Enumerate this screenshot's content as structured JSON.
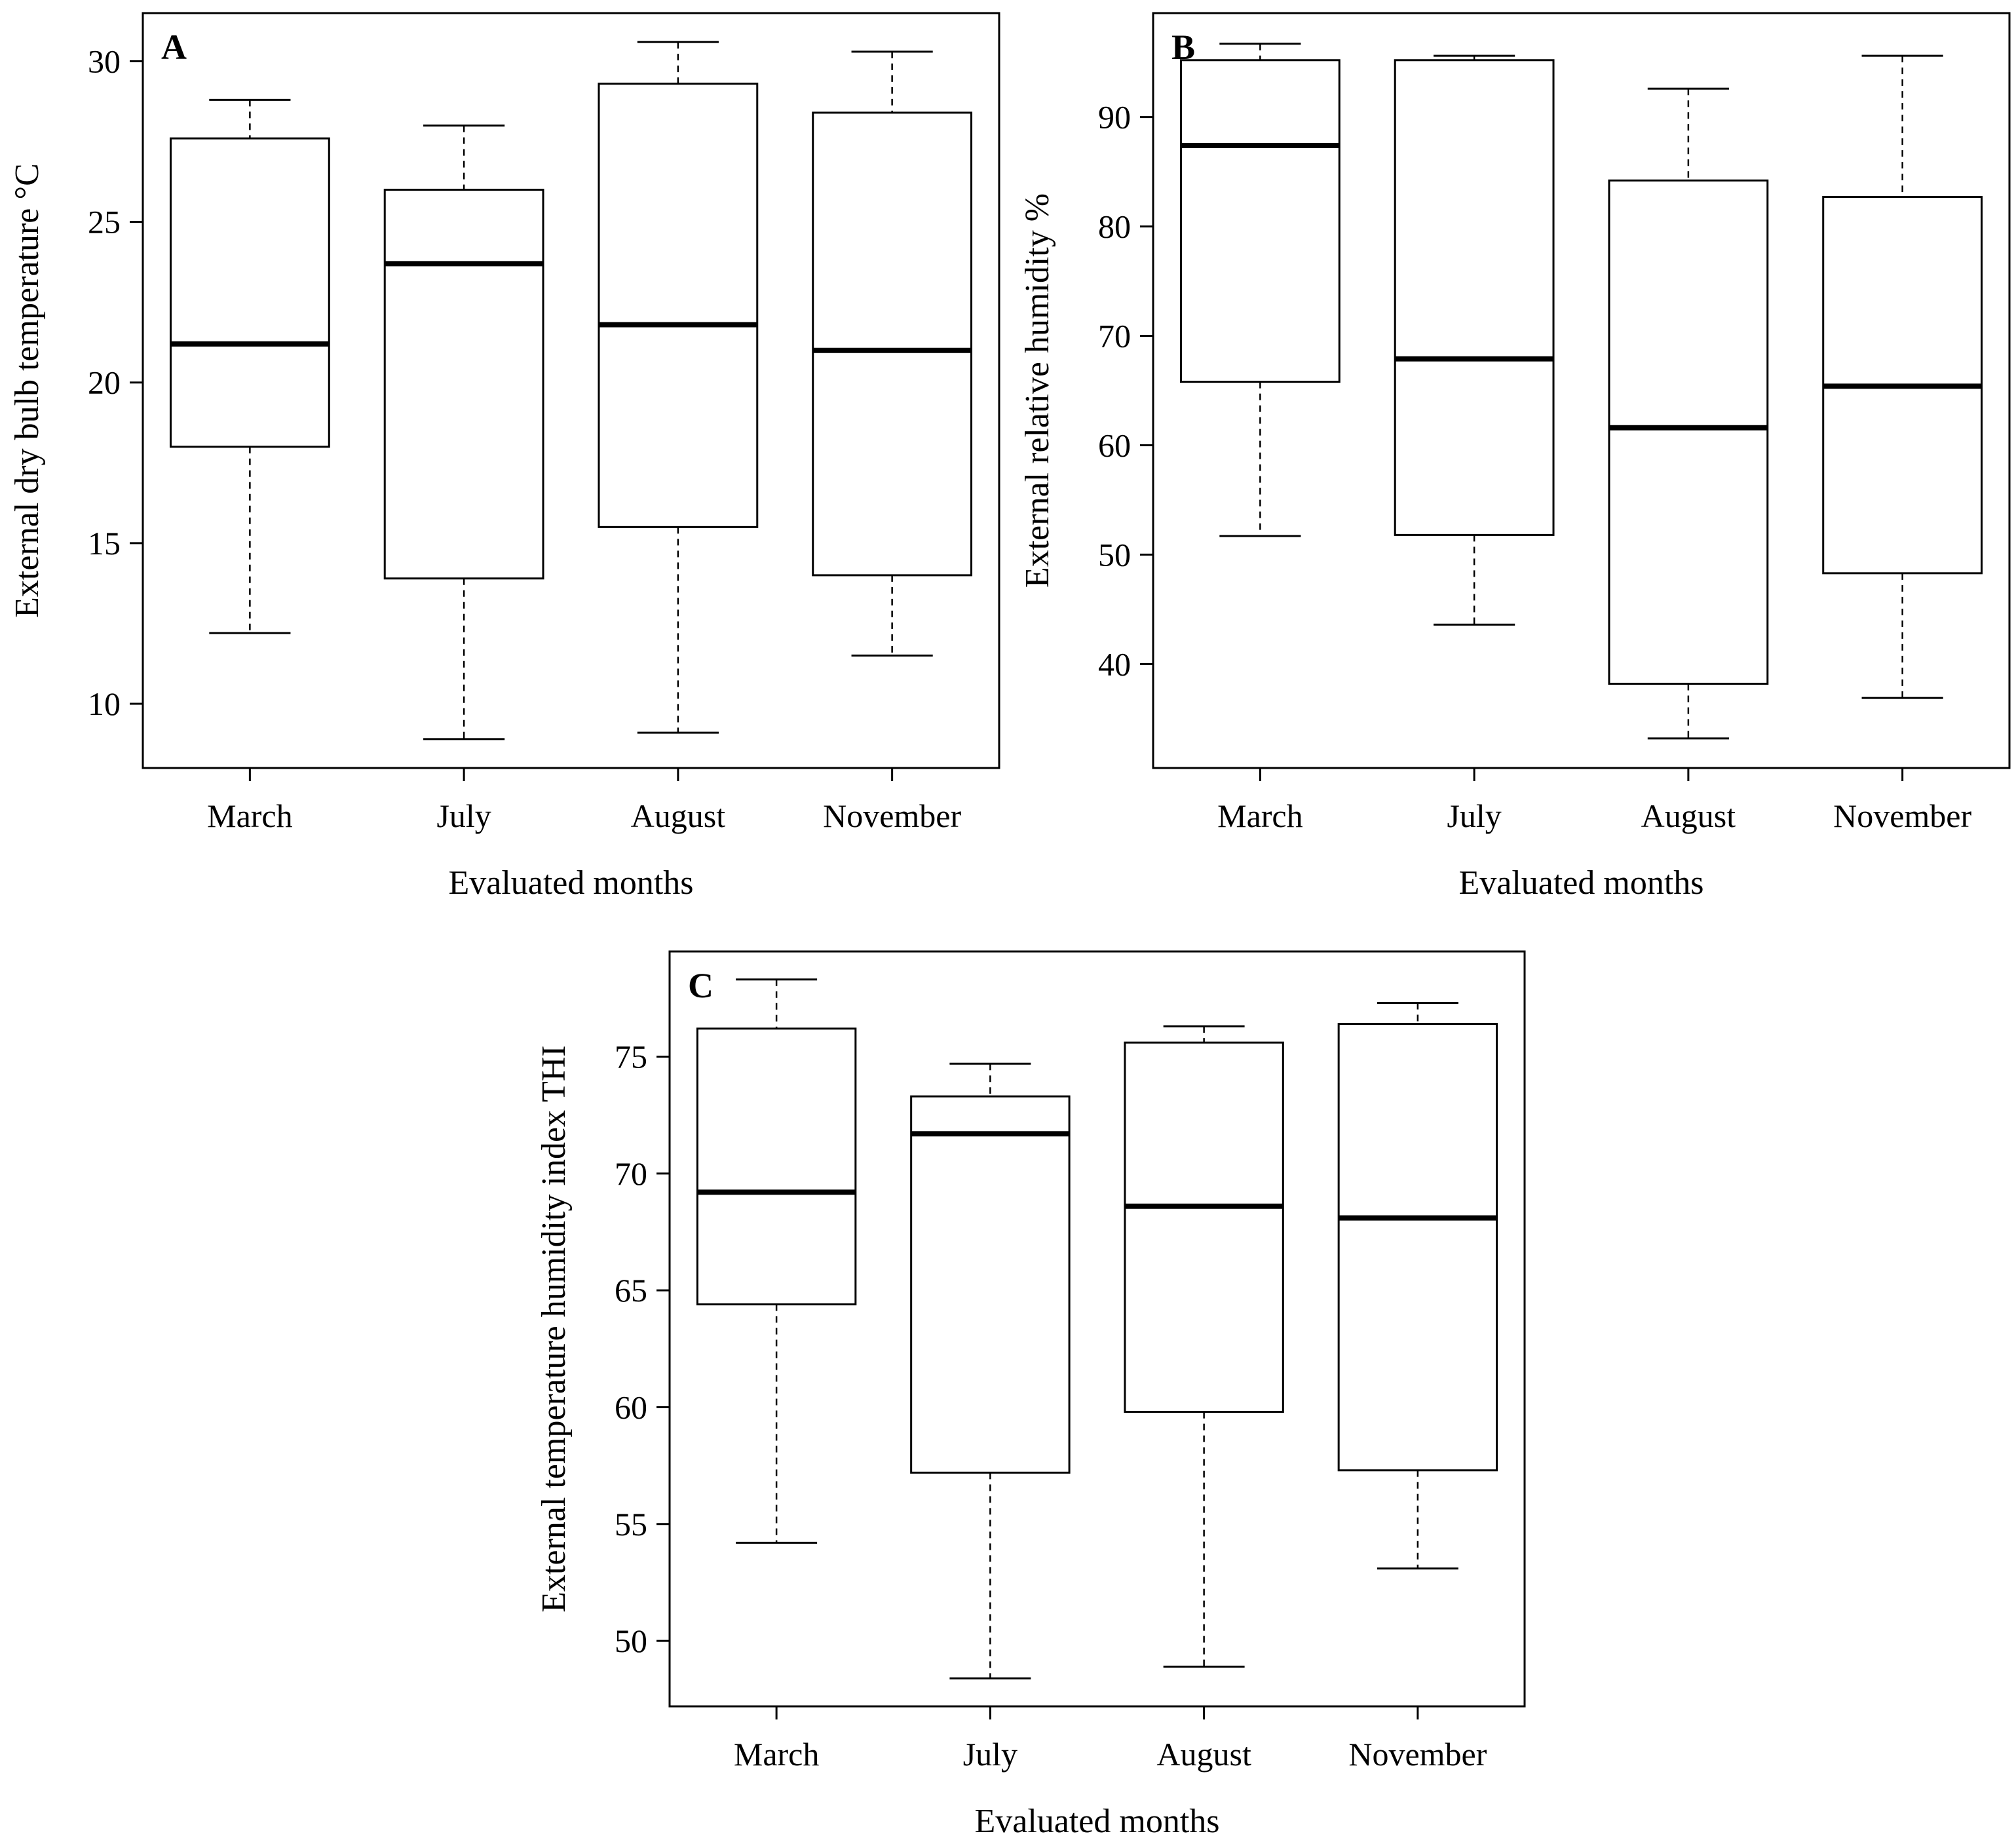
{
  "chart_data": [
    {
      "type": "box",
      "panel": "A",
      "xlabel": "Evaluated months",
      "ylabel": "External dry bulb temperature °C",
      "categories": [
        "March",
        "July",
        "August",
        "November"
      ],
      "yticks": [
        10,
        15,
        20,
        25,
        30
      ],
      "ylim": [
        8.0,
        31.5
      ],
      "boxes": [
        {
          "category": "March",
          "min": 12.2,
          "q1": 18.0,
          "median": 21.2,
          "q3": 27.6,
          "max": 28.8
        },
        {
          "category": "July",
          "min": 8.9,
          "q1": 13.9,
          "median": 23.7,
          "q3": 26.0,
          "max": 28.0
        },
        {
          "category": "August",
          "min": 9.1,
          "q1": 15.5,
          "median": 21.8,
          "q3": 29.3,
          "max": 30.6
        },
        {
          "category": "November",
          "min": 11.5,
          "q1": 14.0,
          "median": 21.0,
          "q3": 28.4,
          "max": 30.3
        }
      ]
    },
    {
      "type": "box",
      "panel": "B",
      "xlabel": "Evaluated months",
      "ylabel": "External relative humidity %",
      "categories": [
        "March",
        "July",
        "August",
        "November"
      ],
      "yticks": [
        40,
        50,
        60,
        70,
        80,
        90
      ],
      "ylim": [
        30.5,
        99.5
      ],
      "boxes": [
        {
          "category": "March",
          "min": 51.7,
          "q1": 65.8,
          "median": 87.4,
          "q3": 95.2,
          "max": 96.7
        },
        {
          "category": "July",
          "min": 43.6,
          "q1": 51.8,
          "median": 67.9,
          "q3": 95.2,
          "max": 95.6
        },
        {
          "category": "August",
          "min": 33.2,
          "q1": 38.2,
          "median": 61.6,
          "q3": 84.2,
          "max": 92.6
        },
        {
          "category": "November",
          "min": 36.9,
          "q1": 48.3,
          "median": 65.4,
          "q3": 82.7,
          "max": 95.6
        }
      ]
    },
    {
      "type": "box",
      "panel": "C",
      "xlabel": "Evaluated months",
      "ylabel": "External temperature humidity index THI",
      "categories": [
        "March",
        "July",
        "August",
        "November"
      ],
      "yticks": [
        50,
        55,
        60,
        65,
        70,
        75
      ],
      "ylim": [
        47.2,
        79.5
      ],
      "boxes": [
        {
          "category": "March",
          "min": 54.2,
          "q1": 64.4,
          "median": 69.2,
          "q3": 76.2,
          "max": 78.3
        },
        {
          "category": "July",
          "min": 48.4,
          "q1": 57.2,
          "median": 71.7,
          "q3": 73.3,
          "max": 74.7
        },
        {
          "category": "August",
          "min": 48.9,
          "q1": 59.8,
          "median": 68.6,
          "q3": 75.6,
          "max": 76.3
        },
        {
          "category": "November",
          "min": 53.1,
          "q1": 57.3,
          "median": 68.1,
          "q3": 76.4,
          "max": 77.3
        }
      ]
    }
  ]
}
